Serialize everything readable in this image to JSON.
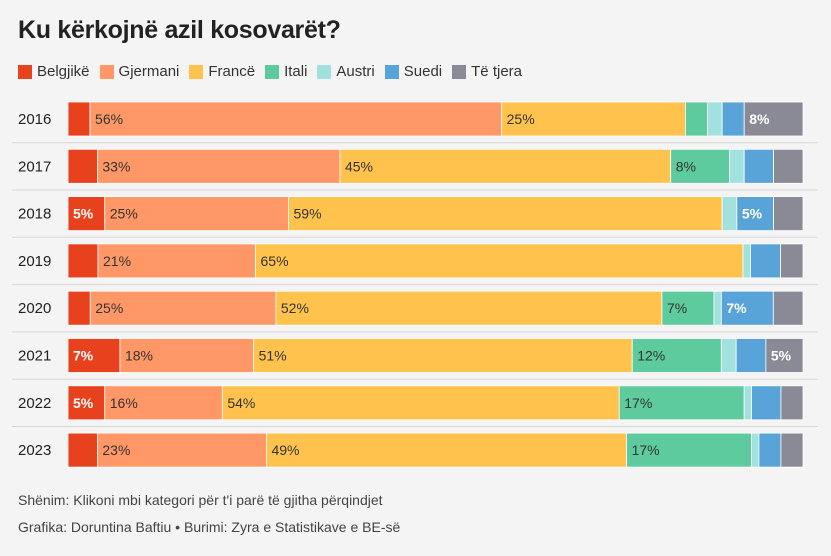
{
  "title": "Ku kërkojnë azil kosovarët?",
  "note": "Shënim: Klikoni mbi kategori për t'i parë të gjitha përqindjet",
  "credits": "Grafika: Doruntina Baftiu • Burimi: Zyra e Statistikave e BE-së",
  "chart_data": {
    "type": "bar",
    "orientation": "horizontal",
    "stacked": "percent",
    "categories": [
      "2016",
      "2017",
      "2018",
      "2019",
      "2020",
      "2021",
      "2022",
      "2023"
    ],
    "series": [
      {
        "name": "Belgjikë",
        "color": "#e8411e",
        "values": [
          3,
          4,
          5,
          4,
          3,
          7,
          5,
          4
        ],
        "labels": [
          "",
          "",
          "5%",
          "",
          "",
          "7%",
          "5%",
          ""
        ]
      },
      {
        "name": "Gjermani",
        "color": "#ff9866",
        "values": [
          56,
          33,
          25,
          21,
          25,
          18,
          16,
          23
        ],
        "labels": [
          "56%",
          "33%",
          "25%",
          "21%",
          "25%",
          "18%",
          "16%",
          "23%"
        ]
      },
      {
        "name": "Francë",
        "color": "#ffc34d",
        "values": [
          25,
          45,
          59,
          65,
          52,
          51,
          54,
          49
        ],
        "labels": [
          "25%",
          "45%",
          "59%",
          "65%",
          "52%",
          "51%",
          "54%",
          "49%"
        ]
      },
      {
        "name": "Itali",
        "color": "#5dcb9d",
        "values": [
          3,
          8,
          0,
          0,
          7,
          12,
          17,
          17
        ],
        "labels": [
          "",
          "8%",
          "",
          "",
          "7%",
          "12%",
          "17%",
          "17%"
        ]
      },
      {
        "name": "Austri",
        "color": "#a2e1dd",
        "values": [
          2,
          2,
          2,
          1,
          1,
          2,
          1,
          1
        ],
        "labels": [
          "",
          "",
          "",
          "",
          "",
          "",
          "",
          ""
        ]
      },
      {
        "name": "Suedi",
        "color": "#58a4d8",
        "values": [
          3,
          4,
          5,
          4,
          7,
          4,
          4,
          3
        ],
        "labels": [
          "",
          "",
          "5%",
          "",
          "7%",
          "",
          "",
          ""
        ]
      },
      {
        "name": "Të tjera",
        "color": "#8a8a96",
        "values": [
          8,
          4,
          4,
          3,
          4,
          5,
          3,
          3
        ],
        "labels": [
          "8%",
          "",
          "",
          "",
          "",
          "5%",
          "",
          ""
        ]
      }
    ],
    "xlim": [
      0,
      100
    ],
    "legend": "top-left",
    "grid": false
  }
}
